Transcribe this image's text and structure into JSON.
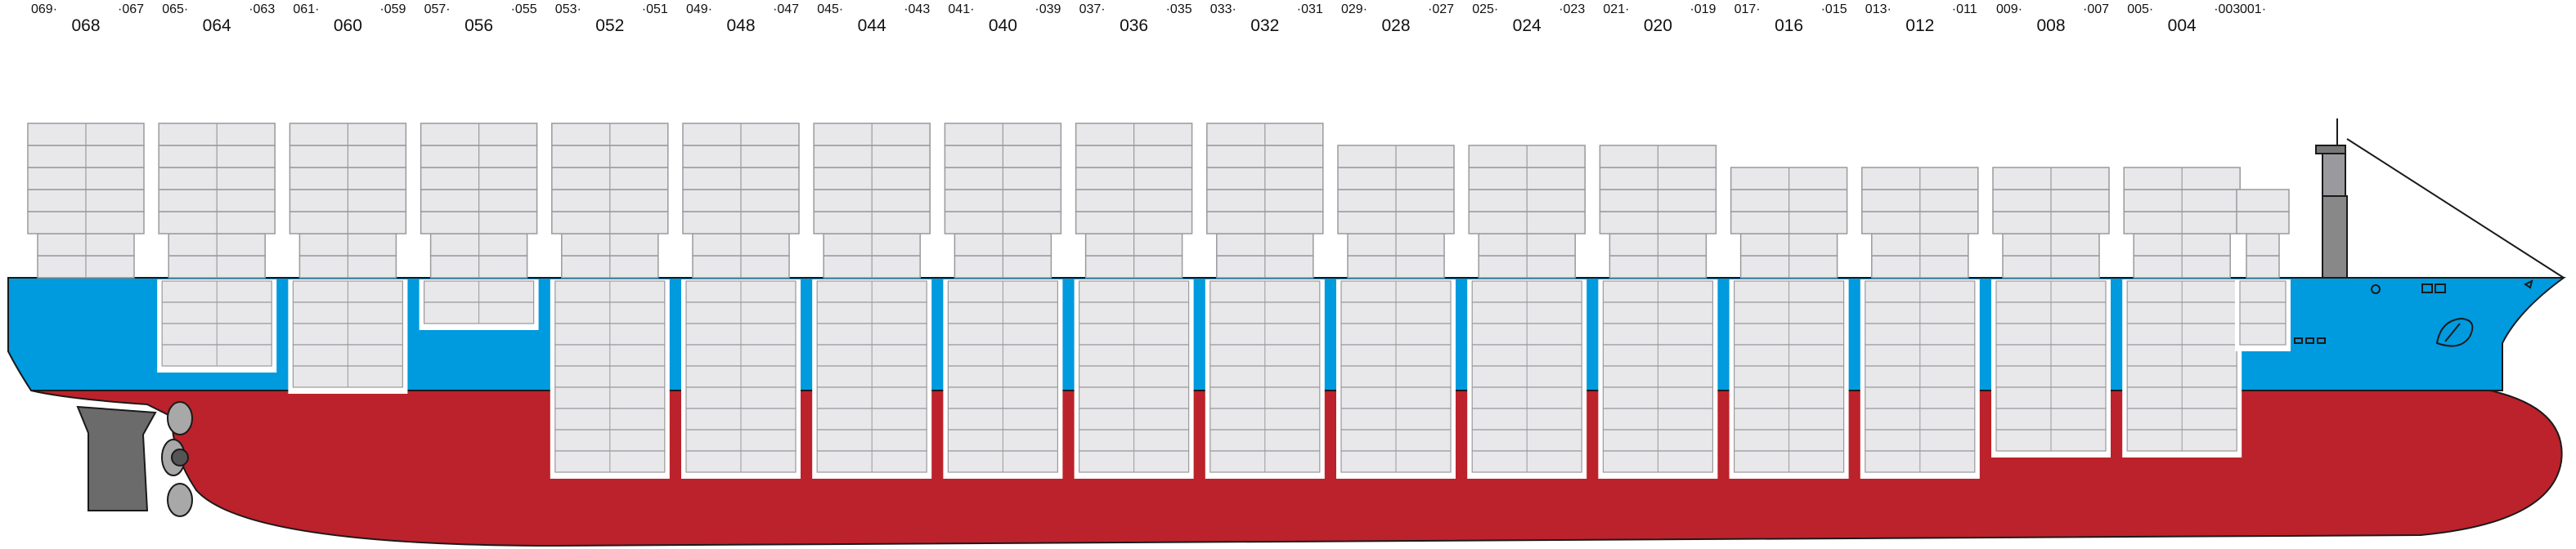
{
  "colors": {
    "hull_red": "#bc222b",
    "hull_blue": "#009ade",
    "container": "#e8e8ea",
    "container_line": "#9a9a9e",
    "hold_frame": "#ffffff",
    "outline": "#1a1a1a",
    "rudder": "#6b6b6b",
    "propeller": "#a8a8a8"
  },
  "bays": [
    {
      "main": "068",
      "fwd": "069",
      "aft": "067",
      "deck_tiers": 7,
      "hold_tiers": 0
    },
    {
      "main": "064",
      "fwd": "065",
      "aft": "063",
      "deck_tiers": 7,
      "hold_tiers": 4
    },
    {
      "main": "060",
      "fwd": "061",
      "aft": "059",
      "deck_tiers": 7,
      "hold_tiers": 5
    },
    {
      "main": "056",
      "fwd": "057",
      "aft": "055",
      "deck_tiers": 7,
      "hold_tiers": 2
    },
    {
      "main": "052",
      "fwd": "053",
      "aft": "051",
      "deck_tiers": 7,
      "hold_tiers": 9
    },
    {
      "main": "048",
      "fwd": "049",
      "aft": "047",
      "deck_tiers": 7,
      "hold_tiers": 9
    },
    {
      "main": "044",
      "fwd": "045",
      "aft": "043",
      "deck_tiers": 7,
      "hold_tiers": 9
    },
    {
      "main": "040",
      "fwd": "041",
      "aft": "039",
      "deck_tiers": 7,
      "hold_tiers": 9
    },
    {
      "main": "036",
      "fwd": "037",
      "aft": "035",
      "deck_tiers": 7,
      "hold_tiers": 9
    },
    {
      "main": "032",
      "fwd": "033",
      "aft": "031",
      "deck_tiers": 7,
      "hold_tiers": 9
    },
    {
      "main": "028",
      "fwd": "029",
      "aft": "027",
      "deck_tiers": 6,
      "hold_tiers": 9
    },
    {
      "main": "024",
      "fwd": "025",
      "aft": "023",
      "deck_tiers": 6,
      "hold_tiers": 9
    },
    {
      "main": "020",
      "fwd": "021",
      "aft": "019",
      "deck_tiers": 6,
      "hold_tiers": 9
    },
    {
      "main": "016",
      "fwd": "017",
      "aft": "015",
      "deck_tiers": 5,
      "hold_tiers": 9
    },
    {
      "main": "012",
      "fwd": "013",
      "aft": "011",
      "deck_tiers": 5,
      "hold_tiers": 9
    },
    {
      "main": "008",
      "fwd": "009",
      "aft": "007",
      "deck_tiers": 5,
      "hold_tiers": 8
    },
    {
      "main": "004",
      "fwd": "005",
      "aft": "003",
      "deck_tiers": 5,
      "hold_tiers": 8
    },
    {
      "main": "",
      "fwd": "001",
      "aft": "",
      "deck_tiers": 4,
      "hold_tiers": 3
    }
  ]
}
